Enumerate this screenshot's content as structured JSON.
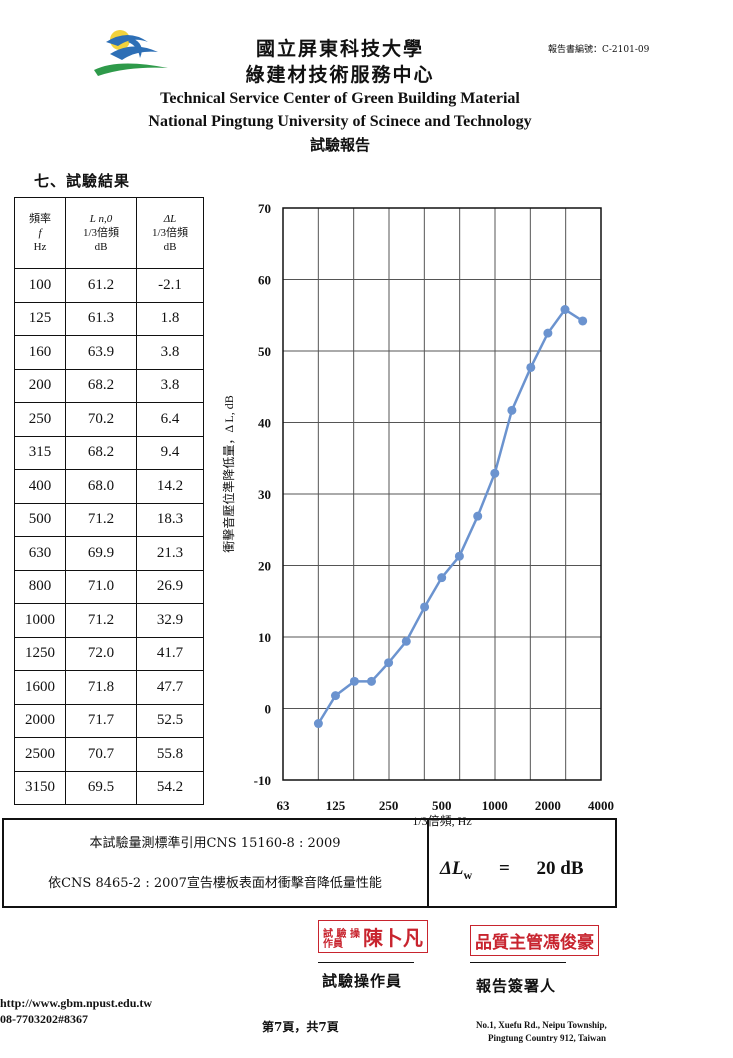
{
  "header": {
    "title_zh1": "國立屏東科技大學",
    "title_zh2": "綠建材技術服務中心",
    "title_en1": "Technical Service Center of Green Building Material",
    "title_en2": "National Pingtung University of Scinece and Technology",
    "title_zh3": "試驗報告",
    "report_no": "報告書編號：C-2101-09"
  },
  "section_title": "七、試驗結果",
  "table": {
    "head": {
      "freq": [
        "頻率",
        "f",
        "Hz"
      ],
      "ln": [
        "L n,0",
        "1/3倍頻",
        "dB"
      ],
      "dl": [
        "ΔL",
        "1/3倍頻",
        "dB"
      ]
    },
    "rows": [
      [
        "100",
        "61.2",
        "-2.1"
      ],
      [
        "125",
        "61.3",
        "1.8"
      ],
      [
        "160",
        "63.9",
        "3.8"
      ],
      [
        "200",
        "68.2",
        "3.8"
      ],
      [
        "250",
        "70.2",
        "6.4"
      ],
      [
        "315",
        "68.2",
        "9.4"
      ],
      [
        "400",
        "68.0",
        "14.2"
      ],
      [
        "500",
        "71.2",
        "18.3"
      ],
      [
        "630",
        "69.9",
        "21.3"
      ],
      [
        "800",
        "71.0",
        "26.9"
      ],
      [
        "1000",
        "71.2",
        "32.9"
      ],
      [
        "1250",
        "72.0",
        "41.7"
      ],
      [
        "1600",
        "71.8",
        "47.7"
      ],
      [
        "2000",
        "71.7",
        "52.5"
      ],
      [
        "2500",
        "70.7",
        "55.8"
      ],
      [
        "3150",
        "69.5",
        "54.2"
      ]
    ]
  },
  "chart_data": {
    "type": "line",
    "x": [
      100,
      125,
      160,
      200,
      250,
      315,
      400,
      500,
      630,
      800,
      1000,
      1250,
      1600,
      2000,
      2500,
      3150
    ],
    "values": [
      -2.1,
      1.8,
      3.8,
      3.8,
      6.4,
      9.4,
      14.2,
      18.3,
      21.3,
      26.9,
      32.9,
      41.7,
      47.7,
      52.5,
      55.8,
      54.2
    ],
    "x_ticks": [
      "63",
      "125",
      "250",
      "500",
      "1000",
      "2000",
      "4000"
    ],
    "y_ticks": [
      "-10",
      "0",
      "10",
      "20",
      "30",
      "40",
      "50",
      "60",
      "70"
    ],
    "ylim": [
      -10,
      70
    ],
    "xlabel": "1/3倍頻, Hz",
    "ylabel": "衝擊音壓位準降低量，Δ L, dB",
    "grid": true,
    "line_color": "#6b93cf"
  },
  "standards": {
    "line1": "本試驗量測標準引用CNS 15160-8 : 2009",
    "line2": "依CNS 8465-2 : 2007宣告樓板表面材衝擊音降低量性能",
    "result_symbol": "ΔL",
    "result_sub": "w",
    "result_eq": "=",
    "result_value": "20 dB"
  },
  "stamps": {
    "operator_small": "試 驗 操作員",
    "operator_name": "陳卜凡",
    "qa": "品質主管馮俊豪"
  },
  "signatures": {
    "role1": "試驗操作員",
    "role2": "報告簽署人"
  },
  "footer": {
    "url": "http://www.gbm.npust.edu.tw",
    "tel": "08-7703202#8367",
    "page": "第7頁，共7頁",
    "addr1": "No.1, Xuefu Rd., Neipu Township,",
    "addr2": "Pingtung Country 912, Taiwan"
  }
}
